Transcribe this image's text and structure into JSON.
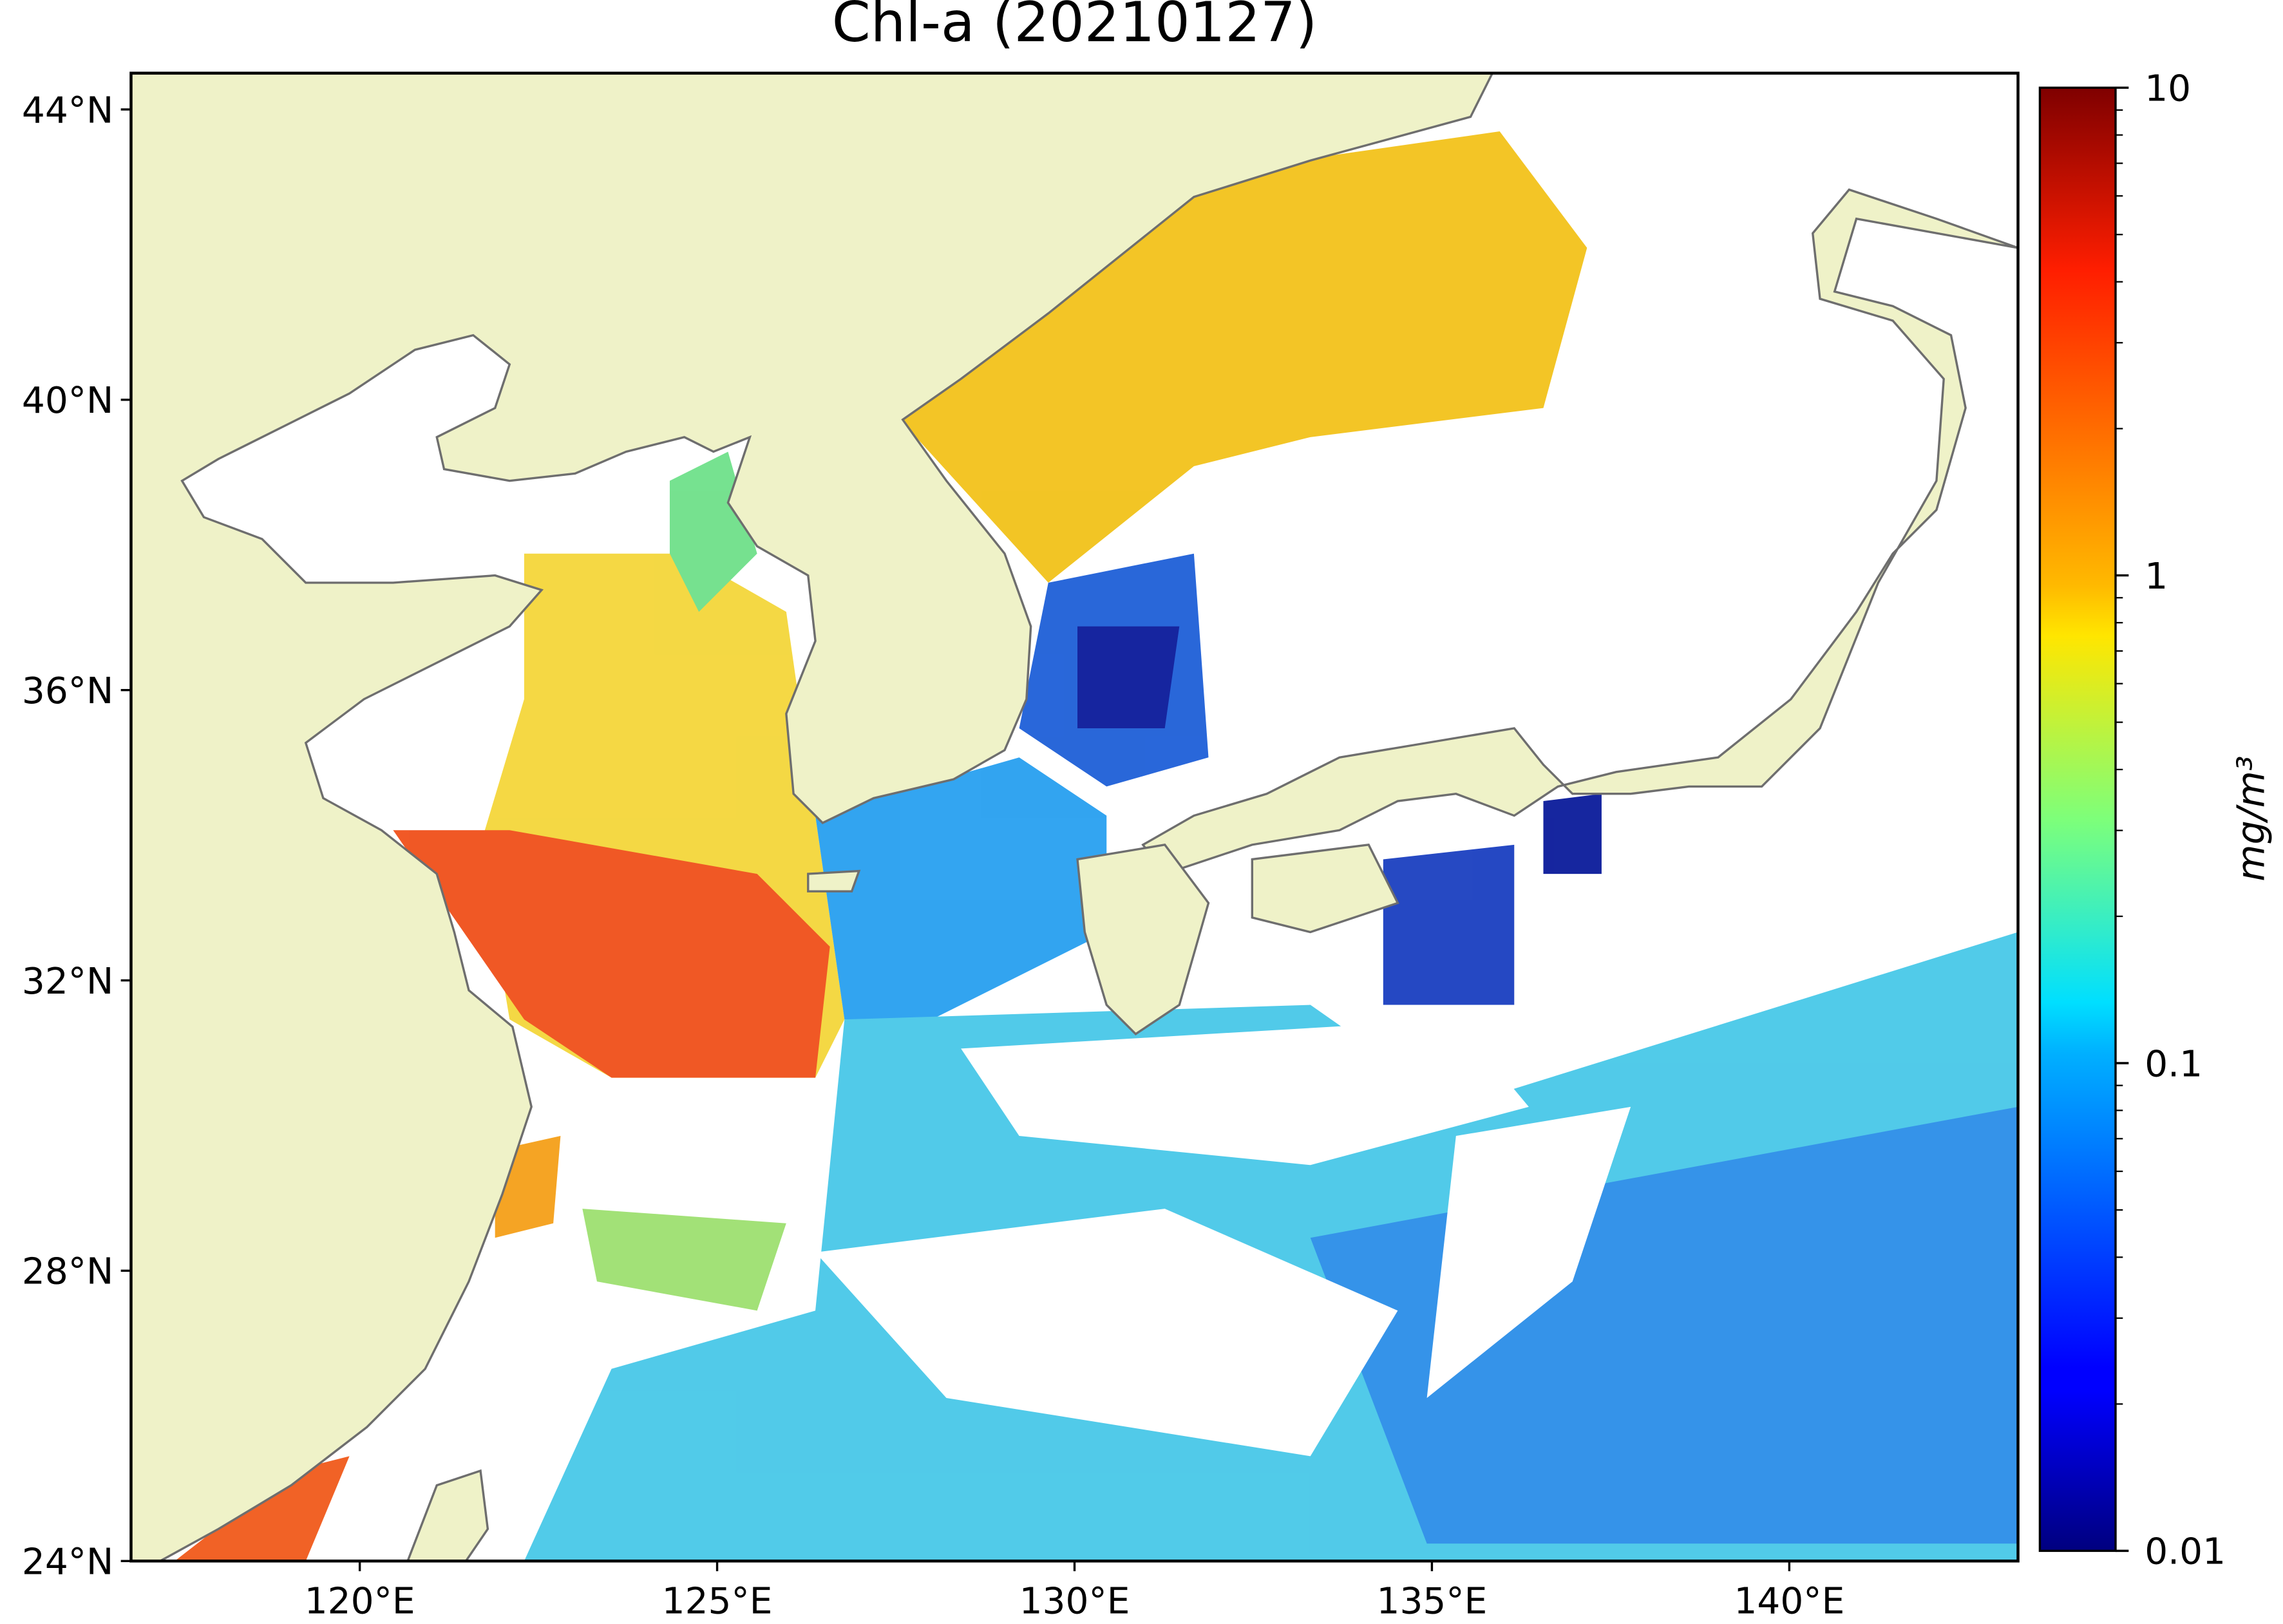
{
  "map": {
    "title": "Chl-a (20210127)",
    "xlim": [
      116.8,
      143.2
    ],
    "ylim": [
      24,
      44.5
    ],
    "xticks": [
      {
        "value": 120,
        "label": "120°E"
      },
      {
        "value": 125,
        "label": "125°E"
      },
      {
        "value": 130,
        "label": "130°E"
      },
      {
        "value": 135,
        "label": "135°E"
      },
      {
        "value": 140,
        "label": "140°E"
      }
    ],
    "yticks": [
      {
        "value": 24,
        "label": "24°N"
      },
      {
        "value": 28,
        "label": "28°N"
      },
      {
        "value": 32,
        "label": "32°N"
      },
      {
        "value": 36,
        "label": "36°N"
      },
      {
        "value": 40,
        "label": "40°N"
      },
      {
        "value": 44,
        "label": "44°N"
      }
    ],
    "colorbar": {
      "label": "mg/m³",
      "scale": "log",
      "lim": [
        0.01,
        10
      ],
      "ticks": [
        0.01,
        0.1,
        1,
        10
      ]
    }
  }
}
